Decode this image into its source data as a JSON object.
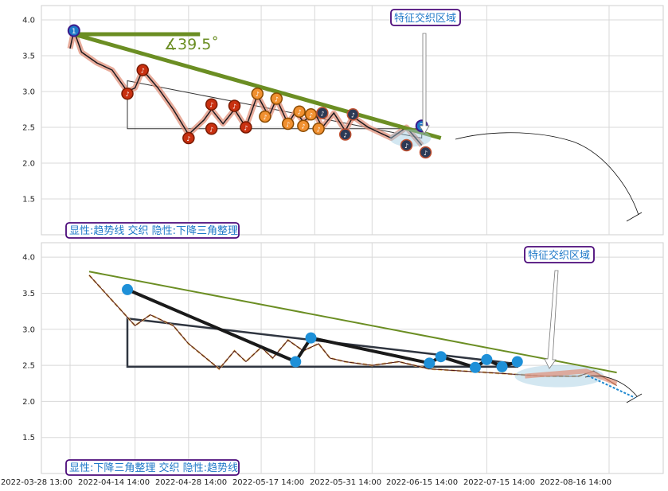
{
  "chart_data": [
    {
      "type": "line",
      "panel": "top",
      "ylim": [
        1.0,
        4.2
      ],
      "yticks": [
        "1.5",
        "2.0",
        "2.5",
        "3.0",
        "3.5",
        "4.0"
      ],
      "grid": true,
      "badge": "显性:趋势线 交织 隐性:下降三角整理",
      "callout": "特征交织区域",
      "angle_label": "∡39.5˚",
      "point_labels": [
        "1",
        "2"
      ],
      "series": [
        {
          "values": [
            [
              "2022-03-28",
              3.6
            ],
            [
              "2022-03-29",
              3.85
            ],
            [
              "2022-03-31",
              3.55
            ],
            [
              "2022-04-04",
              3.4
            ],
            [
              "2022-04-08",
              3.3
            ],
            [
              "2022-04-12",
              3.0
            ],
            [
              "2022-04-14",
              3.05
            ],
            [
              "2022-04-16",
              3.3
            ],
            [
              "2022-04-20",
              3.05
            ],
            [
              "2022-04-24",
              2.75
            ],
            [
              "2022-04-28",
              2.4
            ],
            [
              "2022-05-02",
              2.6
            ],
            [
              "2022-05-04",
              2.75
            ],
            [
              "2022-05-07",
              2.55
            ],
            [
              "2022-05-10",
              2.75
            ],
            [
              "2022-05-13",
              2.5
            ],
            [
              "2022-05-16",
              2.95
            ],
            [
              "2022-05-19",
              2.65
            ],
            [
              "2022-05-21",
              2.9
            ],
            [
              "2022-05-24",
              2.55
            ],
            [
              "2022-05-26",
              2.72
            ],
            [
              "2022-05-28",
              2.58
            ],
            [
              "2022-05-31",
              2.7
            ],
            [
              "2022-06-02",
              2.5
            ],
            [
              "2022-06-05",
              2.7
            ],
            [
              "2022-06-08",
              2.45
            ],
            [
              "2022-06-10",
              2.65
            ],
            [
              "2022-06-14",
              2.5
            ],
            [
              "2022-06-20",
              2.35
            ],
            [
              "2022-06-24",
              2.5
            ],
            [
              "2022-06-28",
              2.25
            ]
          ]
        }
      ],
      "trendline": {
        "from": [
          "2022-03-29",
          3.8
        ],
        "to": [
          "2022-07-03",
          2.35
        ]
      },
      "triangle": {
        "upper": [
          [
            "2022-04-12",
            3.15
          ],
          [
            "2022-06-28",
            2.35
          ]
        ],
        "lower": [
          [
            "2022-04-12",
            2.48
          ],
          [
            "2022-06-28",
            2.48
          ]
        ]
      },
      "markers_dark_red": [
        [
          "2022-04-12",
          2.97
        ],
        [
          "2022-04-16",
          3.3
        ],
        [
          "2022-04-28",
          2.35
        ],
        [
          "2022-05-04",
          2.48
        ],
        [
          "2022-05-04",
          2.82
        ],
        [
          "2022-05-10",
          2.8
        ],
        [
          "2022-05-13",
          2.5
        ]
      ],
      "markers_orange": [
        [
          "2022-05-16",
          2.97
        ],
        [
          "2022-05-18",
          2.65
        ],
        [
          "2022-05-21",
          2.9
        ],
        [
          "2022-05-24",
          2.55
        ],
        [
          "2022-05-27",
          2.72
        ],
        [
          "2022-05-28",
          2.52
        ],
        [
          "2022-05-30",
          2.68
        ],
        [
          "2022-06-01",
          2.48
        ]
      ],
      "markers_dark": [
        [
          "2022-06-02",
          2.7
        ],
        [
          "2022-06-08",
          2.4
        ],
        [
          "2022-06-10",
          2.68
        ],
        [
          "2022-06-24",
          2.25
        ],
        [
          "2022-06-29",
          2.15
        ]
      ]
    },
    {
      "type": "line",
      "panel": "bottom",
      "ylim": [
        1.0,
        4.2
      ],
      "yticks": [
        "1.5",
        "2.0",
        "2.5",
        "3.0",
        "3.5",
        "4.0"
      ],
      "grid": true,
      "badge": "显性:下降三角整理 交织 隐性:趋势线",
      "callout": "特征交织区域",
      "x_tick_labels": [
        "2022-03-28 13:00",
        "2022-04-14 14:00",
        "2022-04-28 14:00",
        "2022-05-17 14:00",
        "2022-05-31 14:00",
        "2022-06-15 14:00",
        "2022-07-15 14:00",
        "2022-08-16 14:00"
      ],
      "series": [
        {
          "values": [
            [
              "2022-04-02",
              3.75
            ],
            [
              "2022-04-14",
              3.05
            ],
            [
              "2022-04-18",
              3.2
            ],
            [
              "2022-04-24",
              3.05
            ],
            [
              "2022-04-28",
              2.8
            ],
            [
              "2022-05-06",
              2.45
            ],
            [
              "2022-05-10",
              2.7
            ],
            [
              "2022-05-13",
              2.55
            ],
            [
              "2022-05-17",
              2.75
            ],
            [
              "2022-05-20",
              2.6
            ],
            [
              "2022-05-24",
              2.85
            ],
            [
              "2022-05-28",
              2.7
            ],
            [
              "2022-06-01",
              2.8
            ],
            [
              "2022-06-04",
              2.6
            ],
            [
              "2022-06-08",
              2.55
            ],
            [
              "2022-06-15",
              2.5
            ],
            [
              "2022-06-22",
              2.55
            ],
            [
              "2022-06-30",
              2.45
            ],
            [
              "2022-07-15",
              2.4
            ],
            [
              "2022-07-30",
              2.35
            ],
            [
              "2022-08-08",
              2.35
            ],
            [
              "2022-08-12",
              2.42
            ],
            [
              "2022-08-18",
              2.22
            ]
          ]
        }
      ],
      "trendline": {
        "from": [
          "2022-04-02",
          3.8
        ],
        "to": [
          "2022-08-18",
          2.4
        ]
      },
      "triangle": {
        "upper": [
          [
            "2022-04-12",
            3.15
          ],
          [
            "2022-07-23",
            2.52
          ]
        ],
        "lower": [
          [
            "2022-04-12",
            2.48
          ],
          [
            "2022-07-23",
            2.48
          ]
        ]
      },
      "pattern_path": [
        [
          "2022-04-12",
          3.55
        ],
        [
          "2022-05-26",
          2.55
        ],
        [
          "2022-05-30",
          2.88
        ],
        [
          "2022-06-30",
          2.53
        ],
        [
          "2022-07-03",
          2.62
        ],
        [
          "2022-07-12",
          2.47
        ],
        [
          "2022-07-15",
          2.58
        ],
        [
          "2022-07-19",
          2.48
        ],
        [
          "2022-07-23",
          2.55
        ]
      ],
      "markers_blue": [
        [
          "2022-04-12",
          3.55
        ],
        [
          "2022-05-26",
          2.55
        ],
        [
          "2022-05-30",
          2.88
        ],
        [
          "2022-06-30",
          2.53
        ],
        [
          "2022-07-03",
          2.62
        ],
        [
          "2022-07-12",
          2.47
        ],
        [
          "2022-07-15",
          2.58
        ],
        [
          "2022-07-19",
          2.48
        ],
        [
          "2022-07-23",
          2.55
        ]
      ]
    }
  ]
}
